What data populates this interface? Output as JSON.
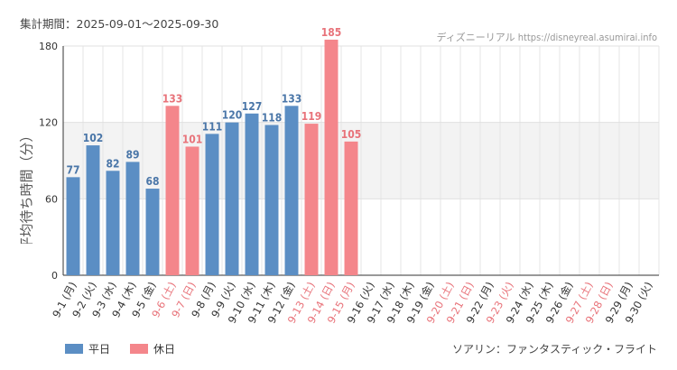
{
  "header": {
    "period": "集計期間：2025-09-01～2025-09-30"
  },
  "watermark": "ディズニーリアル https://disneyreal.asumirai.info",
  "footer": {
    "attraction": "ソアリン：ファンタスティック・フライト"
  },
  "colors": {
    "weekday": "#5b8ec4",
    "holiday": "#f4868b",
    "holiday_label": "#e8737a",
    "weekday_label": "#4a76a8"
  },
  "chart_data": {
    "type": "bar",
    "ylabel": "平均待ち時間（分）",
    "ylim": [
      0,
      180
    ],
    "yticks": [
      0,
      60,
      120,
      180
    ],
    "legend": [
      {
        "name": "平日",
        "color": "#5b8ec4"
      },
      {
        "name": "休日",
        "color": "#f4868b"
      }
    ],
    "legend_position": "bottom-left",
    "categories": [
      "9-1 (月)",
      "9-2 (火)",
      "9-3 (水)",
      "9-4 (木)",
      "9-5 (金)",
      "9-6 (土)",
      "9-7 (日)",
      "9-8 (月)",
      "9-9 (火)",
      "9-10 (水)",
      "9-11 (木)",
      "9-12 (金)",
      "9-13 (土)",
      "9-14 (日)",
      "9-15 (月)",
      "9-16 (火)",
      "9-17 (水)",
      "9-18 (木)",
      "9-19 (金)",
      "9-20 (土)",
      "9-21 (日)",
      "9-22 (月)",
      "9-23 (火)",
      "9-24 (水)",
      "9-25 (木)",
      "9-26 (金)",
      "9-27 (土)",
      "9-28 (日)",
      "9-29 (月)",
      "9-30 (火)"
    ],
    "values": [
      77,
      102,
      82,
      89,
      68,
      133,
      101,
      111,
      120,
      127,
      118,
      133,
      119,
      185,
      105,
      null,
      null,
      null,
      null,
      null,
      null,
      null,
      null,
      null,
      null,
      null,
      null,
      null,
      null,
      null
    ],
    "holiday": [
      false,
      false,
      false,
      false,
      false,
      true,
      true,
      false,
      false,
      false,
      false,
      false,
      true,
      true,
      true,
      false,
      false,
      false,
      false,
      true,
      true,
      false,
      true,
      false,
      false,
      false,
      true,
      true,
      false,
      false
    ],
    "grid": true
  }
}
